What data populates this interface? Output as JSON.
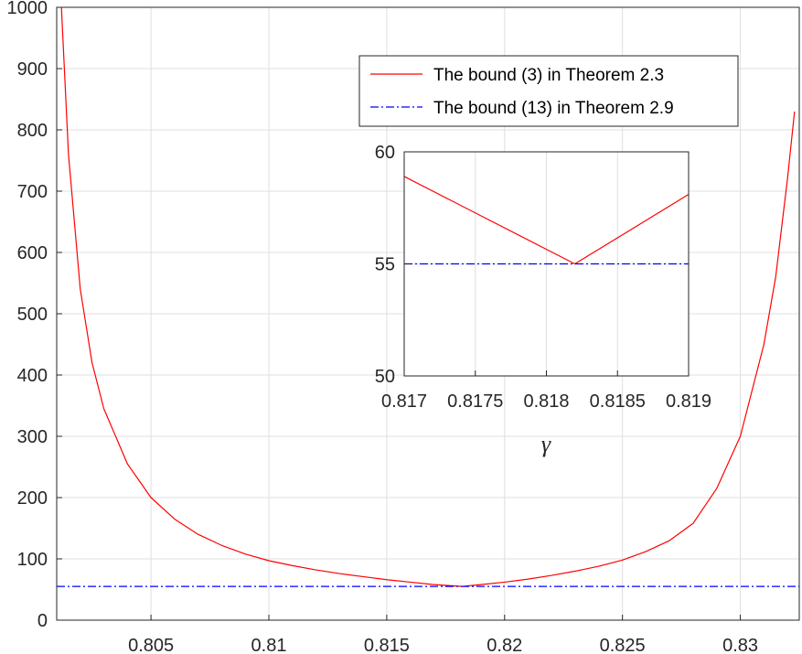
{
  "chart_data": [
    {
      "type": "line",
      "xlim": [
        0.801,
        0.8325
      ],
      "ylim": [
        0,
        1000
      ],
      "xticks": [
        0.805,
        0.81,
        0.815,
        0.82,
        0.825,
        0.83
      ],
      "xtick_labels": [
        "0.805",
        "0.81",
        "0.815",
        "0.82",
        "0.825",
        "0.83"
      ],
      "yticks": [
        0,
        100,
        200,
        300,
        400,
        500,
        600,
        700,
        800,
        900,
        1000
      ],
      "ytick_labels": [
        "0",
        "100",
        "200",
        "300",
        "400",
        "500",
        "600",
        "700",
        "800",
        "900",
        "1000"
      ],
      "grid": true,
      "legend_position": "top-right",
      "series": [
        {
          "name": "The bound (3) in Theorem 2.3",
          "color": "#ff0000",
          "style": "solid",
          "x": [
            0.8012,
            0.8015,
            0.802,
            0.8025,
            0.803,
            0.804,
            0.805,
            0.806,
            0.807,
            0.808,
            0.809,
            0.81,
            0.811,
            0.812,
            0.813,
            0.814,
            0.815,
            0.816,
            0.817,
            0.8182,
            0.819,
            0.82,
            0.821,
            0.822,
            0.823,
            0.824,
            0.825,
            0.826,
            0.827,
            0.828,
            0.829,
            0.83,
            0.831,
            0.8315,
            0.832,
            0.8323
          ],
          "y": [
            1000,
            760,
            540,
            420,
            345,
            255,
            200,
            165,
            140,
            122,
            108,
            97,
            89,
            82,
            76,
            71,
            66,
            62,
            58,
            55,
            58,
            62,
            67,
            73,
            80,
            88,
            98,
            112,
            130,
            158,
            215,
            300,
            450,
            560,
            720,
            830
          ]
        },
        {
          "name": "The bound (13) in Theorem 2.9",
          "color": "#0000ff",
          "style": "dashdot",
          "x": [
            0.801,
            0.8325
          ],
          "y": [
            55,
            55
          ]
        }
      ]
    },
    {
      "type": "line",
      "inset": true,
      "xlim": [
        0.817,
        0.819
      ],
      "ylim": [
        50,
        60
      ],
      "xticks": [
        0.817,
        0.8175,
        0.818,
        0.8185,
        0.819
      ],
      "xtick_labels": [
        "0.817",
        "0.8175",
        "0.818",
        "0.8185",
        "0.819"
      ],
      "yticks": [
        50,
        55,
        60
      ],
      "ytick_labels": [
        "50",
        "55",
        "60"
      ],
      "xlabel": "γ",
      "grid": true,
      "series": [
        {
          "color": "#ff0000",
          "style": "solid",
          "x": [
            0.817,
            0.8182,
            0.819
          ],
          "y": [
            58.9,
            55,
            58.1
          ]
        },
        {
          "color": "#0000ff",
          "style": "dashdot",
          "x": [
            0.817,
            0.819
          ],
          "y": [
            55,
            55
          ]
        }
      ]
    }
  ]
}
